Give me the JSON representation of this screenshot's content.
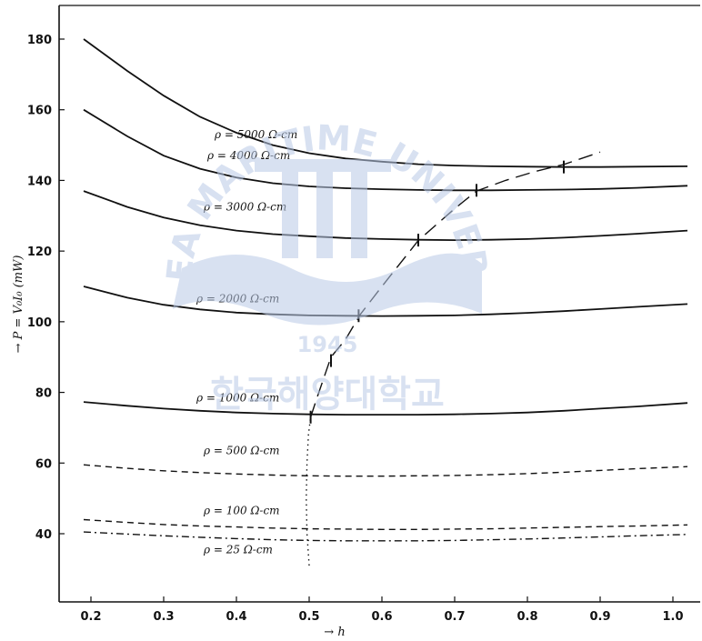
{
  "watermark": {
    "arc_text": "KOREA MARITIME UNIVERSITY",
    "year": "1945",
    "korean_text": "한국해양대학교",
    "color": "#b9c9e6"
  },
  "chart_data": {
    "type": "line",
    "title": "",
    "xlabel": "h",
    "ylabel": "P = V₀I₀ (mW)",
    "xlim": [
      0.15,
      1.03
    ],
    "ylim": [
      25,
      185
    ],
    "xticks": [
      0.2,
      0.3,
      0.4,
      0.5,
      0.6,
      0.7,
      0.8,
      0.9,
      1.0
    ],
    "xtick_labels": [
      "0.2",
      "0.3",
      "0.4",
      "0.5",
      "0.6",
      "0.7",
      "0.8",
      "0.9",
      "1.0"
    ],
    "yticks": [
      40,
      60,
      80,
      100,
      120,
      140,
      160,
      180
    ],
    "ytick_labels": [
      "40",
      "60",
      "80",
      "100",
      "120",
      "140",
      "160",
      "180"
    ],
    "grid": false,
    "series": [
      {
        "name": "ρ = 5000 Ω-cm",
        "style": "solid",
        "x": [
          0.19,
          0.25,
          0.3,
          0.35,
          0.4,
          0.45,
          0.5,
          0.55,
          0.6,
          0.65,
          0.7,
          0.75,
          0.8,
          0.85,
          0.9,
          0.95,
          1.02
        ],
        "y": [
          180,
          171,
          164,
          158,
          153.5,
          150,
          147.7,
          146.2,
          145.3,
          144.6,
          144.2,
          144,
          143.9,
          143.8,
          143.8,
          143.9,
          144
        ]
      },
      {
        "name": "ρ = 4000 Ω-cm",
        "style": "solid",
        "x": [
          0.19,
          0.25,
          0.3,
          0.35,
          0.4,
          0.45,
          0.5,
          0.55,
          0.6,
          0.65,
          0.7,
          0.75,
          0.8,
          0.85,
          0.9,
          0.95,
          1.02
        ],
        "y": [
          160,
          152.5,
          147,
          143.3,
          140.8,
          139.2,
          138.3,
          137.8,
          137.5,
          137.3,
          137.2,
          137.2,
          137.3,
          137.4,
          137.6,
          137.9,
          138.5
        ]
      },
      {
        "name": "ρ = 3000 Ω-cm",
        "style": "solid",
        "x": [
          0.19,
          0.25,
          0.3,
          0.35,
          0.4,
          0.45,
          0.5,
          0.55,
          0.6,
          0.65,
          0.7,
          0.75,
          0.8,
          0.85,
          0.9,
          0.95,
          1.02
        ],
        "y": [
          137,
          132.5,
          129.5,
          127.3,
          125.8,
          124.8,
          124.2,
          123.7,
          123.4,
          123.2,
          123.1,
          123.2,
          123.4,
          123.8,
          124.3,
          124.9,
          125.8
        ]
      },
      {
        "name": "ρ = 2000 Ω-cm",
        "style": "solid",
        "x": [
          0.19,
          0.25,
          0.3,
          0.35,
          0.4,
          0.45,
          0.5,
          0.55,
          0.6,
          0.65,
          0.7,
          0.75,
          0.8,
          0.85,
          0.9,
          0.95,
          1.02
        ],
        "y": [
          110,
          106.8,
          104.8,
          103.5,
          102.6,
          102.1,
          101.8,
          101.7,
          101.6,
          101.7,
          101.8,
          102.1,
          102.5,
          103,
          103.6,
          104.2,
          105
        ]
      },
      {
        "name": "ρ = 1000 Ω-cm",
        "style": "solid",
        "x": [
          0.19,
          0.25,
          0.3,
          0.35,
          0.4,
          0.45,
          0.5,
          0.55,
          0.6,
          0.65,
          0.7,
          0.75,
          0.8,
          0.85,
          0.9,
          0.95,
          1.02
        ],
        "y": [
          77.3,
          76.2,
          75.4,
          74.8,
          74.3,
          74,
          73.8,
          73.7,
          73.7,
          73.7,
          73.8,
          74,
          74.3,
          74.8,
          75.4,
          76,
          77
        ]
      },
      {
        "name": "ρ = 500 Ω-cm",
        "style": "dashed",
        "x": [
          0.19,
          0.25,
          0.3,
          0.35,
          0.4,
          0.45,
          0.5,
          0.55,
          0.6,
          0.65,
          0.7,
          0.75,
          0.8,
          0.85,
          0.9,
          0.95,
          1.02
        ],
        "y": [
          59.5,
          58.5,
          57.8,
          57.3,
          56.9,
          56.6,
          56.4,
          56.3,
          56.3,
          56.4,
          56.5,
          56.7,
          57,
          57.4,
          57.9,
          58.4,
          59
        ]
      },
      {
        "name": "ρ = 100 Ω-cm",
        "style": "dashed",
        "x": [
          0.19,
          0.25,
          0.3,
          0.35,
          0.4,
          0.45,
          0.5,
          0.55,
          0.6,
          0.65,
          0.7,
          0.75,
          0.8,
          0.85,
          0.9,
          0.95,
          1.02
        ],
        "y": [
          44,
          43.2,
          42.6,
          42.2,
          41.9,
          41.6,
          41.4,
          41.3,
          41.2,
          41.2,
          41.3,
          41.4,
          41.6,
          41.8,
          42,
          42.2,
          42.5
        ]
      },
      {
        "name": "ρ = 25 Ω-cm",
        "style": "dashdot",
        "x": [
          0.19,
          0.25,
          0.3,
          0.35,
          0.4,
          0.45,
          0.5,
          0.55,
          0.6,
          0.65,
          0.7,
          0.75,
          0.8,
          0.85,
          0.9,
          0.95,
          1.02
        ],
        "y": [
          40.5,
          39.9,
          39.4,
          39,
          38.6,
          38.3,
          38.1,
          38,
          38,
          38,
          38.1,
          38.3,
          38.5,
          38.8,
          39.1,
          39.4,
          39.8
        ]
      },
      {
        "name": "",
        "style": "dotted",
        "x": [
          0.5,
          0.497,
          0.496,
          0.497,
          0.499,
          0.502
        ],
        "y": [
          31,
          40,
          50,
          60,
          68,
          73
        ]
      },
      {
        "name": "",
        "style": "longdash",
        "x": [
          0.502,
          0.51,
          0.53,
          0.55,
          0.57,
          0.6,
          0.65,
          0.7,
          0.73,
          0.77,
          0.81,
          0.85,
          0.9
        ],
        "y": [
          73,
          78,
          90,
          95,
          102,
          110,
          123,
          132,
          137,
          140,
          142.5,
          144.5,
          148
        ]
      }
    ],
    "curve_labels": [
      {
        "text": "ρ = 5000 Ω-cm",
        "x": 0.37,
        "y": 152
      },
      {
        "text": "ρ = 4000 Ω-cm",
        "x": 0.36,
        "y": 146
      },
      {
        "text": "ρ = 3000 Ω-cm",
        "x": 0.355,
        "y": 131.5
      },
      {
        "text": "ρ = 2000 Ω-cm",
        "x": 0.345,
        "y": 105.5
      },
      {
        "text": "ρ = 1000 Ω-cm",
        "x": 0.345,
        "y": 77.5
      },
      {
        "text": "ρ = 500 Ω-cm",
        "x": 0.355,
        "y": 62.5
      },
      {
        "text": "ρ = 100 Ω-cm",
        "x": 0.355,
        "y": 45.5
      },
      {
        "text": "ρ = 25 Ω-cm",
        "x": 0.355,
        "y": 34.5
      }
    ],
    "markers": [
      {
        "x": 0.502,
        "y": 73
      },
      {
        "x": 0.53,
        "y": 89
      },
      {
        "x": 0.568,
        "y": 101.7
      },
      {
        "x": 0.65,
        "y": 123.1
      },
      {
        "x": 0.73,
        "y": 137.2
      },
      {
        "x": 0.85,
        "y": 143.8
      }
    ]
  }
}
